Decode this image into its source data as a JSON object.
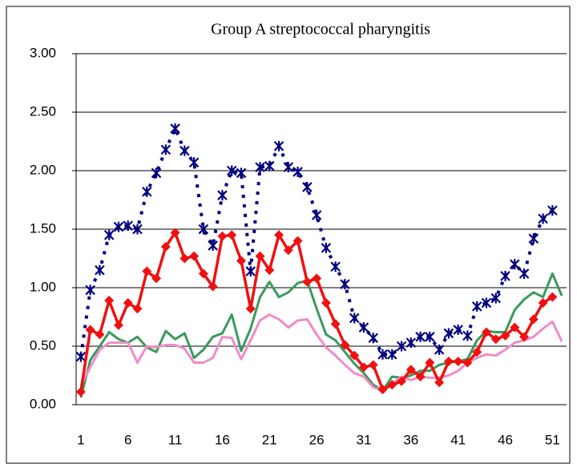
{
  "chart_data": {
    "type": "line",
    "title": "Group A streptococcal pharyngitis",
    "categories": [
      1,
      null,
      null,
      null,
      null,
      6,
      null,
      null,
      null,
      null,
      11,
      null,
      null,
      null,
      null,
      16,
      null,
      null,
      null,
      null,
      21,
      null,
      null,
      null,
      null,
      26,
      null,
      null,
      null,
      null,
      31,
      null,
      null,
      null,
      null,
      36,
      null,
      null,
      null,
      null,
      41,
      null,
      null,
      null,
      null,
      46,
      null,
      null,
      null,
      null,
      51,
      null
    ],
    "ylim": [
      0,
      3
    ],
    "yticks": [
      {
        "value": 0,
        "label": "0.00"
      },
      {
        "value": 0.5,
        "label": "0.50"
      },
      {
        "value": 1,
        "label": "1.00"
      },
      {
        "value": 1.5,
        "label": "1.50"
      },
      {
        "value": 2,
        "label": "2.00"
      },
      {
        "value": 2.5,
        "label": "2.50"
      },
      {
        "value": 3,
        "label": "3.00"
      }
    ],
    "grid": true,
    "series": [
      {
        "color": "#1f4e9a",
        "line_style": "dashed",
        "marker": "asterisk",
        "marker_color": "#000080",
        "values": [
          0.41,
          0.98,
          1.15,
          1.45,
          1.52,
          1.53,
          1.5,
          1.82,
          1.98,
          2.18,
          2.36,
          2.17,
          2.07,
          1.5,
          1.36,
          1.79,
          2.0,
          1.98,
          1.14,
          2.03,
          2.04,
          2.21,
          2.03,
          1.99,
          1.86,
          1.62,
          1.34,
          1.18,
          1.03,
          0.74,
          0.66,
          0.57,
          0.43,
          0.43,
          0.5,
          0.53,
          0.58,
          0.58,
          0.47,
          0.61,
          0.64,
          0.59,
          0.84,
          0.87,
          0.91,
          1.1,
          1.2,
          1.12,
          1.42,
          1.59,
          1.66,
          null
        ]
      },
      {
        "color": "#3a9a5c",
        "line_style": "solid",
        "marker": "none",
        "values": [
          0.06,
          0.38,
          0.5,
          0.62,
          0.56,
          0.53,
          0.58,
          0.49,
          0.45,
          0.63,
          0.56,
          0.61,
          0.4,
          0.47,
          0.58,
          0.61,
          0.77,
          0.46,
          0.65,
          0.92,
          1.05,
          0.92,
          0.96,
          1.04,
          1.06,
          0.82,
          0.6,
          0.55,
          0.45,
          0.35,
          0.27,
          0.17,
          0.12,
          0.24,
          0.23,
          0.25,
          0.29,
          0.29,
          0.34,
          0.36,
          0.37,
          0.39,
          0.55,
          0.63,
          0.62,
          0.62,
          0.81,
          0.9,
          0.96,
          0.92,
          1.12,
          0.93
        ]
      },
      {
        "color": "#f08cc8",
        "line_style": "solid",
        "marker": "none",
        "values": [
          0.16,
          0.32,
          0.47,
          0.53,
          0.53,
          0.53,
          0.36,
          0.5,
          0.49,
          0.51,
          0.51,
          0.48,
          0.36,
          0.36,
          0.4,
          0.58,
          0.57,
          0.39,
          0.55,
          0.72,
          0.77,
          0.73,
          0.66,
          0.72,
          0.73,
          0.6,
          0.49,
          0.42,
          0.34,
          0.27,
          0.24,
          0.15,
          0.12,
          0.18,
          0.24,
          0.21,
          0.24,
          0.23,
          0.23,
          0.25,
          0.29,
          0.36,
          0.4,
          0.43,
          0.42,
          0.47,
          0.53,
          0.55,
          0.58,
          0.65,
          0.71,
          0.54
        ]
      },
      {
        "color": "#ee1111",
        "line_style": "solid",
        "marker": "diamond",
        "marker_color": "#ee1111",
        "values": [
          0.11,
          0.64,
          0.6,
          0.89,
          0.68,
          0.87,
          0.82,
          1.14,
          1.08,
          1.35,
          1.47,
          1.25,
          1.27,
          1.12,
          1.01,
          1.44,
          1.45,
          1.23,
          0.82,
          1.27,
          1.15,
          1.45,
          1.32,
          1.4,
          1.05,
          1.08,
          0.87,
          0.69,
          0.51,
          0.42,
          0.32,
          0.34,
          0.13,
          0.17,
          0.2,
          0.3,
          0.24,
          0.36,
          0.19,
          0.37,
          0.37,
          0.36,
          0.45,
          0.62,
          0.56,
          0.59,
          0.66,
          0.58,
          0.73,
          0.87,
          0.92,
          null
        ]
      }
    ]
  }
}
